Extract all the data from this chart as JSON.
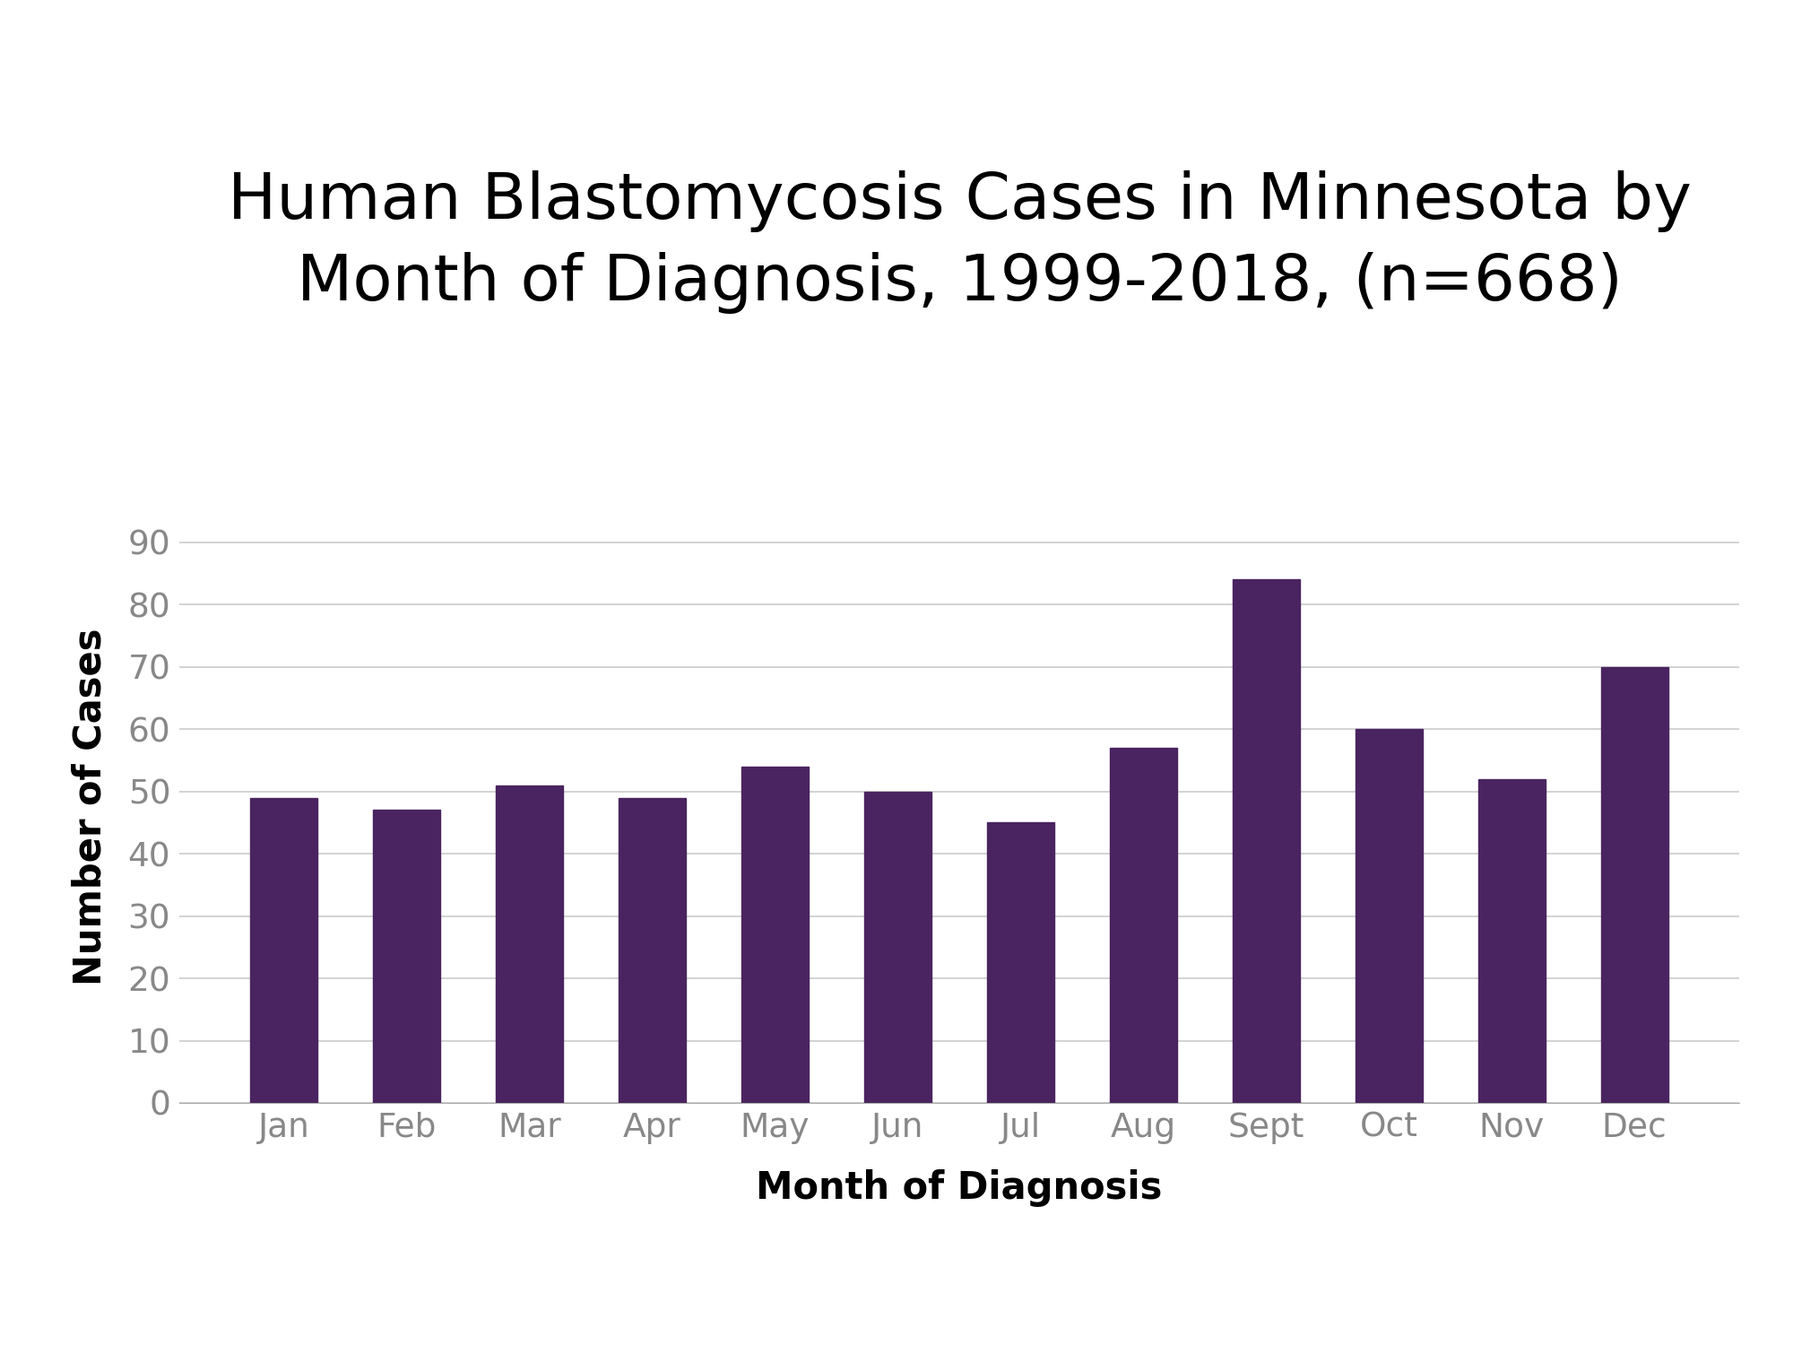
{
  "title_line1": "Human Blastomycosis Cases in Minnesota by",
  "title_line2": "Month of Diagnosis, 1999-2018, (n=668)",
  "xlabel": "Month of Diagnosis",
  "ylabel": "Number of Cases",
  "categories": [
    "Jan",
    "Feb",
    "Mar",
    "Apr",
    "May",
    "Jun",
    "Jul",
    "Aug",
    "Sept",
    "Oct",
    "Nov",
    "Dec"
  ],
  "values": [
    49,
    47,
    51,
    49,
    54,
    50,
    45,
    57,
    84,
    60,
    52,
    70
  ],
  "bar_color": "#4a2460",
  "background_color": "#ffffff",
  "ylim": [
    0,
    95
  ],
  "yticks": [
    0,
    10,
    20,
    30,
    40,
    50,
    60,
    70,
    80,
    90
  ],
  "title_fontsize": 52,
  "axis_label_fontsize": 30,
  "tick_fontsize": 27,
  "grid_color": "#cccccc",
  "bar_width": 0.55,
  "tick_color": "#888888"
}
